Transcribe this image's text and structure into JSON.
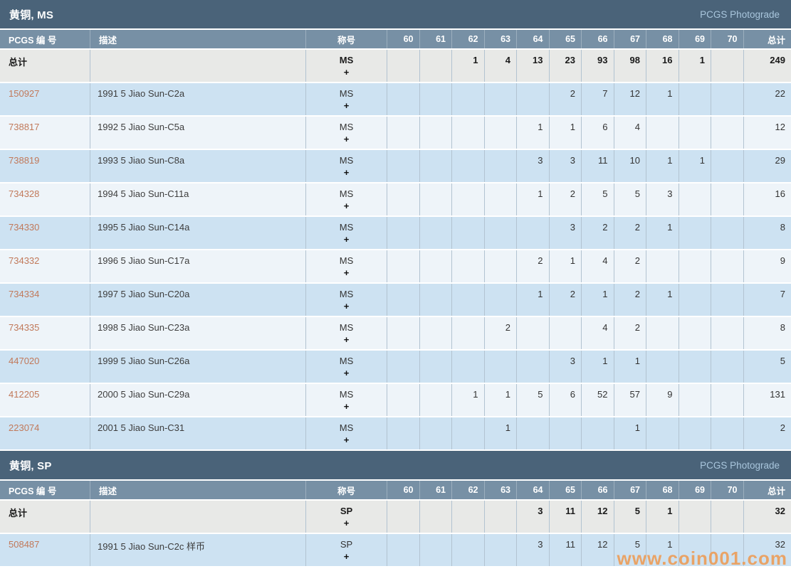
{
  "watermark": "www.coin001.com",
  "table": {
    "columns": {
      "pcgs_number": "PCGS 编 号",
      "description": "描述",
      "designation": "称号",
      "grades": [
        "60",
        "61",
        "62",
        "63",
        "64",
        "65",
        "66",
        "67",
        "68",
        "69",
        "70"
      ],
      "total": "总计"
    },
    "totals_row_label": "总计"
  },
  "sections": [
    {
      "title": "黄铜, MS",
      "photograde_link": "PCGS Photograde",
      "designation": "MS",
      "designation_plus": "+",
      "totals": {
        "counts": [
          "",
          "",
          "1",
          "4",
          "13",
          "23",
          "93",
          "98",
          "16",
          "1",
          ""
        ],
        "total": "249"
      },
      "rows": [
        {
          "pcgs": "150927",
          "desc": "1991 5 Jiao Sun-C2a",
          "counts": [
            "",
            "",
            "",
            "",
            "",
            "2",
            "7",
            "12",
            "1",
            "",
            ""
          ],
          "total": "22"
        },
        {
          "pcgs": "738817",
          "desc": "1992 5 Jiao Sun-C5a",
          "counts": [
            "",
            "",
            "",
            "",
            "1",
            "1",
            "6",
            "4",
            "",
            "",
            ""
          ],
          "total": "12"
        },
        {
          "pcgs": "738819",
          "desc": "1993 5 Jiao Sun-C8a",
          "counts": [
            "",
            "",
            "",
            "",
            "3",
            "3",
            "11",
            "10",
            "1",
            "1",
            ""
          ],
          "total": "29"
        },
        {
          "pcgs": "734328",
          "desc": "1994 5 Jiao Sun-C11a",
          "counts": [
            "",
            "",
            "",
            "",
            "1",
            "2",
            "5",
            "5",
            "3",
            "",
            ""
          ],
          "total": "16"
        },
        {
          "pcgs": "734330",
          "desc": "1995 5 Jiao Sun-C14a",
          "counts": [
            "",
            "",
            "",
            "",
            "",
            "3",
            "2",
            "2",
            "1",
            "",
            ""
          ],
          "total": "8"
        },
        {
          "pcgs": "734332",
          "desc": "1996 5 Jiao Sun-C17a",
          "counts": [
            "",
            "",
            "",
            "",
            "2",
            "1",
            "4",
            "2",
            "",
            "",
            ""
          ],
          "total": "9"
        },
        {
          "pcgs": "734334",
          "desc": "1997 5 Jiao Sun-C20a",
          "counts": [
            "",
            "",
            "",
            "",
            "1",
            "2",
            "1",
            "2",
            "1",
            "",
            ""
          ],
          "total": "7"
        },
        {
          "pcgs": "734335",
          "desc": "1998 5 Jiao Sun-C23a",
          "counts": [
            "",
            "",
            "",
            "2",
            "",
            "",
            "4",
            "2",
            "",
            "",
            ""
          ],
          "total": "8"
        },
        {
          "pcgs": "447020",
          "desc": "1999 5 Jiao Sun-C26a",
          "counts": [
            "",
            "",
            "",
            "",
            "",
            "3",
            "1",
            "1",
            "",
            "",
            ""
          ],
          "total": "5"
        },
        {
          "pcgs": "412205",
          "desc": "2000 5 Jiao Sun-C29a",
          "counts": [
            "",
            "",
            "1",
            "1",
            "5",
            "6",
            "52",
            "57",
            "9",
            "",
            ""
          ],
          "total": "131"
        },
        {
          "pcgs": "223074",
          "desc": "2001 5 Jiao Sun-C31",
          "counts": [
            "",
            "",
            "",
            "1",
            "",
            "",
            "",
            "1",
            "",
            "",
            ""
          ],
          "total": "2"
        }
      ]
    },
    {
      "title": "黄铜, SP",
      "photograde_link": "PCGS Photograde",
      "designation": "SP",
      "designation_plus": "+",
      "totals": {
        "counts": [
          "",
          "",
          "",
          "",
          "3",
          "11",
          "12",
          "5",
          "1",
          "",
          ""
        ],
        "total": "32"
      },
      "rows": [
        {
          "pcgs": "508487",
          "desc": "1991 5 Jiao Sun-C2c 样币",
          "counts": [
            "",
            "",
            "",
            "",
            "3",
            "11",
            "12",
            "5",
            "1",
            "",
            ""
          ],
          "total": "32"
        }
      ]
    }
  ]
}
